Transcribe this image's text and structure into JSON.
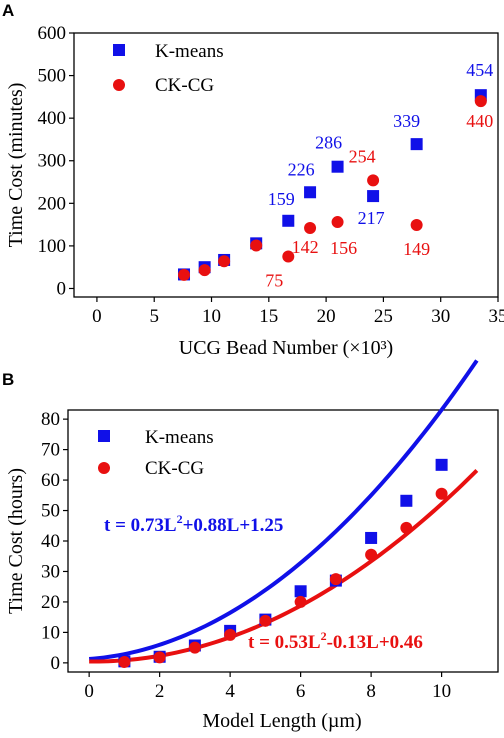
{
  "colors": {
    "kmeans": "#1010e8",
    "ckcg": "#e81010"
  },
  "chart_data": [
    {
      "panel": "A",
      "type": "scatter",
      "xlabel": "UCG Bead Number (×10³)",
      "ylabel": "Time Cost (minutes)",
      "xlim": [
        -2,
        35
      ],
      "ylim": [
        -20,
        600
      ],
      "xticks": [
        0,
        5,
        10,
        15,
        20,
        25,
        30,
        35
      ],
      "yticks": [
        0,
        100,
        200,
        300,
        400,
        500,
        600
      ],
      "legend_position": "top-left",
      "series": [
        {
          "name": "K-means",
          "marker": "square",
          "color": "#1010e8",
          "points": [
            {
              "x": 7.6,
              "y": 33
            },
            {
              "x": 9.4,
              "y": 50
            },
            {
              "x": 11.1,
              "y": 67
            },
            {
              "x": 13.9,
              "y": 106
            },
            {
              "x": 16.7,
              "y": 159
            },
            {
              "x": 18.6,
              "y": 226
            },
            {
              "x": 21.0,
              "y": 286
            },
            {
              "x": 24.1,
              "y": 217
            },
            {
              "x": 27.9,
              "y": 339
            },
            {
              "x": 33.5,
              "y": 454
            }
          ]
        },
        {
          "name": "CK-CG",
          "marker": "circle",
          "color": "#e81010",
          "points": [
            {
              "x": 7.6,
              "y": 32
            },
            {
              "x": 9.4,
              "y": 43
            },
            {
              "x": 11.1,
              "y": 64
            },
            {
              "x": 13.9,
              "y": 101
            },
            {
              "x": 16.7,
              "y": 75
            },
            {
              "x": 18.6,
              "y": 142
            },
            {
              "x": 21.0,
              "y": 156
            },
            {
              "x": 24.1,
              "y": 254
            },
            {
              "x": 27.9,
              "y": 149
            },
            {
              "x": 33.5,
              "y": 440
            }
          ]
        }
      ],
      "annotations": [
        {
          "text": "159",
          "series": "K-means",
          "x": 16.7,
          "y": 159
        },
        {
          "text": "226",
          "series": "K-means",
          "x": 18.6,
          "y": 226
        },
        {
          "text": "286",
          "series": "K-means",
          "x": 21.0,
          "y": 286
        },
        {
          "text": "217",
          "series": "K-means",
          "x": 24.1,
          "y": 217
        },
        {
          "text": "339",
          "series": "K-means",
          "x": 27.9,
          "y": 339
        },
        {
          "text": "454",
          "series": "K-means",
          "x": 33.5,
          "y": 454
        },
        {
          "text": "75",
          "series": "CK-CG",
          "x": 16.7,
          "y": 75
        },
        {
          "text": "142",
          "series": "CK-CG",
          "x": 18.6,
          "y": 142
        },
        {
          "text": "156",
          "series": "CK-CG",
          "x": 21.0,
          "y": 156
        },
        {
          "text": "254",
          "series": "CK-CG",
          "x": 24.1,
          "y": 254
        },
        {
          "text": "149",
          "series": "CK-CG",
          "x": 27.9,
          "y": 149
        },
        {
          "text": "440",
          "series": "CK-CG",
          "x": 33.5,
          "y": 440
        }
      ]
    },
    {
      "panel": "B",
      "type": "scatter",
      "xlabel": "Model Length (µm)",
      "ylabel": "Time Cost (hours)",
      "xlim": [
        -0.6,
        11.6
      ],
      "ylim": [
        -3,
        83
      ],
      "xticks": [
        0,
        2,
        4,
        6,
        8,
        10
      ],
      "yticks": [
        0,
        10,
        20,
        30,
        40,
        50,
        60,
        70,
        80
      ],
      "legend_position": "top-left",
      "series": [
        {
          "name": "K-means",
          "marker": "square",
          "color": "#1010e8",
          "points": [
            {
              "x": 1,
              "y": 0.5
            },
            {
              "x": 2,
              "y": 2.0
            },
            {
              "x": 3,
              "y": 5.7
            },
            {
              "x": 4,
              "y": 10.5
            },
            {
              "x": 5,
              "y": 14.2
            },
            {
              "x": 6,
              "y": 23.5
            },
            {
              "x": 7,
              "y": 27.0
            },
            {
              "x": 8,
              "y": 41.0
            },
            {
              "x": 9,
              "y": 53.2
            },
            {
              "x": 10,
              "y": 65.0
            }
          ],
          "fit": {
            "a": 0.73,
            "b": 0.88,
            "c": 1.25,
            "x_range": [
              0,
              11
            ]
          }
        },
        {
          "name": "CK-CG",
          "marker": "circle",
          "color": "#e81010",
          "points": [
            {
              "x": 1,
              "y": 0.3
            },
            {
              "x": 2,
              "y": 1.8
            },
            {
              "x": 3,
              "y": 5.0
            },
            {
              "x": 4,
              "y": 9.2
            },
            {
              "x": 5,
              "y": 13.8
            },
            {
              "x": 6,
              "y": 20.0
            },
            {
              "x": 7,
              "y": 27.5
            },
            {
              "x": 8,
              "y": 35.5
            },
            {
              "x": 9,
              "y": 44.3
            },
            {
              "x": 10,
              "y": 55.5
            }
          ],
          "fit": {
            "a": 0.53,
            "b": -0.13,
            "c": 0.46,
            "x_range": [
              0,
              11
            ]
          }
        }
      ],
      "equations": {
        "kmeans": {
          "pre": "t = 0.73L",
          "sup": "2",
          "post": "+0.88L+1.25"
        },
        "ckcg": {
          "pre": "t = 0.53L",
          "sup": "2",
          "post": "-0.13L+0.46"
        }
      }
    }
  ]
}
